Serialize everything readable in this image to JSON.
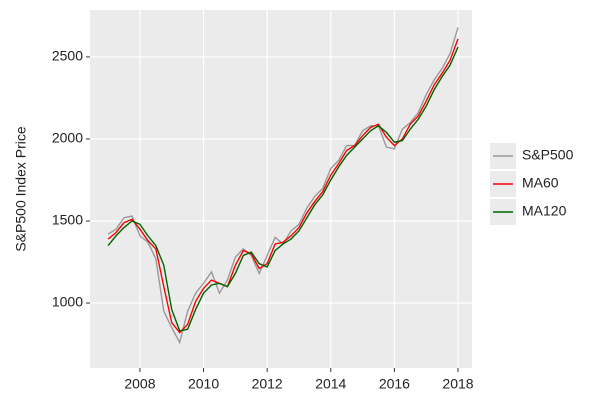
{
  "chart_data": {
    "type": "line",
    "y_label": "S&P500 Index Price",
    "x": [
      2007.0,
      2007.25,
      2007.5,
      2007.75,
      2008.0,
      2008.25,
      2008.5,
      2008.75,
      2009.0,
      2009.25,
      2009.5,
      2009.75,
      2010.0,
      2010.25,
      2010.5,
      2010.75,
      2011.0,
      2011.25,
      2011.5,
      2011.75,
      2012.0,
      2012.25,
      2012.5,
      2012.75,
      2013.0,
      2013.25,
      2013.5,
      2013.75,
      2014.0,
      2014.25,
      2014.5,
      2014.75,
      2015.0,
      2015.25,
      2015.5,
      2015.75,
      2016.0,
      2016.25,
      2016.5,
      2016.75,
      2017.0,
      2017.25,
      2017.5,
      2017.75,
      2018.0
    ],
    "series": [
      {
        "name": "S&P500",
        "color": "#999999",
        "values": [
          1420,
          1450,
          1520,
          1530,
          1410,
          1370,
          1270,
          950,
          850,
          760,
          950,
          1060,
          1120,
          1190,
          1060,
          1140,
          1280,
          1330,
          1290,
          1180,
          1290,
          1400,
          1360,
          1440,
          1480,
          1580,
          1650,
          1700,
          1820,
          1870,
          1960,
          1960,
          2050,
          2080,
          2080,
          1950,
          1940,
          2060,
          2100,
          2160,
          2270,
          2360,
          2430,
          2520,
          2680
        ]
      },
      {
        "name": "MA60",
        "color": "#ff0000",
        "values": [
          1390,
          1430,
          1490,
          1510,
          1450,
          1380,
          1330,
          1100,
          880,
          820,
          870,
          1010,
          1090,
          1140,
          1120,
          1100,
          1230,
          1320,
          1300,
          1210,
          1240,
          1360,
          1370,
          1410,
          1460,
          1550,
          1620,
          1680,
          1780,
          1850,
          1930,
          1960,
          2020,
          2070,
          2090,
          2010,
          1960,
          2000,
          2090,
          2140,
          2230,
          2330,
          2400,
          2480,
          2610
        ]
      },
      {
        "name": "MA120",
        "color": "#006400",
        "values": [
          1350,
          1410,
          1460,
          1500,
          1480,
          1410,
          1350,
          1230,
          960,
          830,
          840,
          960,
          1060,
          1110,
          1120,
          1100,
          1180,
          1290,
          1310,
          1240,
          1220,
          1320,
          1360,
          1390,
          1440,
          1520,
          1600,
          1660,
          1750,
          1830,
          1900,
          1950,
          2000,
          2050,
          2080,
          2040,
          1980,
          1990,
          2060,
          2120,
          2200,
          2300,
          2380,
          2450,
          2560
        ]
      }
    ],
    "xlim": [
      2006.43,
      2018.44
    ],
    "xticks": [
      2008,
      2010,
      2012,
      2014,
      2016,
      2018
    ],
    "ylim": [
      604,
      2786
    ],
    "yticks": [
      1000,
      1500,
      2000,
      2500
    ],
    "grid": true,
    "legend": "right"
  }
}
